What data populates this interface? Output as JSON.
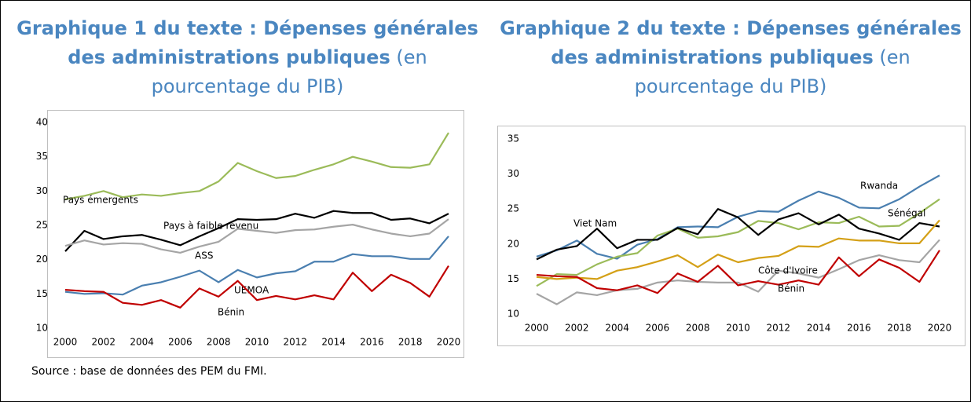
{
  "chart_data": [
    {
      "type": "line",
      "title": "Graphique 1 du texte : Dépenses générales des administrations publiques",
      "subtitle": "(en pourcentage du PIB)",
      "x": [
        2000,
        2001,
        2002,
        2003,
        2004,
        2005,
        2006,
        2007,
        2008,
        2009,
        2010,
        2011,
        2012,
        2013,
        2014,
        2015,
        2016,
        2017,
        2018,
        2019,
        2020
      ],
      "xlim": [
        2000,
        2020
      ],
      "xticks": [
        2000,
        2002,
        2004,
        2006,
        2008,
        2010,
        2012,
        2014,
        2016,
        2018,
        2020
      ],
      "ylim": [
        10,
        40
      ],
      "yticks": [
        10,
        15,
        20,
        25,
        30,
        35,
        40
      ],
      "grid": false,
      "series": [
        {
          "name": "Pays émergents",
          "color": "#9bbb59",
          "values": [
            28.8,
            29.3,
            30.0,
            29.1,
            29.5,
            29.3,
            29.7,
            30.0,
            31.4,
            34.1,
            32.9,
            31.9,
            32.2,
            33.1,
            33.9,
            35.0,
            34.3,
            33.5,
            33.4,
            33.9,
            38.5
          ]
        },
        {
          "name": "Pays à faible revenu",
          "color": "#000000",
          "values": [
            21.2,
            24.2,
            23.0,
            23.4,
            23.6,
            22.9,
            22.1,
            23.4,
            24.6,
            25.9,
            25.8,
            25.9,
            26.7,
            26.1,
            27.1,
            26.8,
            26.8,
            25.8,
            26.0,
            25.3,
            26.7
          ]
        },
        {
          "name": "ASS",
          "color": "#a5a5a5",
          "values": [
            22.0,
            22.8,
            22.2,
            22.4,
            22.3,
            21.5,
            21.0,
            21.9,
            22.6,
            24.5,
            24.2,
            23.9,
            24.3,
            24.4,
            24.8,
            25.1,
            24.4,
            23.8,
            23.4,
            23.8,
            25.9
          ]
        },
        {
          "name": "UEMOA",
          "color": "#4a7fb0",
          "values": [
            15.3,
            15.0,
            15.1,
            14.9,
            16.2,
            16.7,
            17.5,
            18.4,
            16.7,
            18.5,
            17.4,
            18.0,
            18.3,
            19.7,
            19.7,
            20.8,
            20.5,
            20.5,
            20.1,
            20.1,
            23.4
          ]
        },
        {
          "name": "Bénin",
          "color": "#c00000",
          "values": [
            15.6,
            15.4,
            15.3,
            13.7,
            13.4,
            14.1,
            13.0,
            15.8,
            14.6,
            16.9,
            14.1,
            14.7,
            14.2,
            14.8,
            14.2,
            18.1,
            15.4,
            17.8,
            16.6,
            14.6,
            19.1
          ]
        }
      ],
      "source": "Source : base de données des PEM du FMI."
    },
    {
      "type": "line",
      "title": "Graphique 2 du texte : Dépenses générales des administrations publiques",
      "subtitle": "(en pourcentage du PIB)",
      "x": [
        2000,
        2001,
        2002,
        2003,
        2004,
        2005,
        2006,
        2007,
        2008,
        2009,
        2010,
        2011,
        2012,
        2013,
        2014,
        2015,
        2016,
        2017,
        2018,
        2019,
        2020
      ],
      "xlim": [
        2000,
        2020
      ],
      "xticks": [
        2000,
        2002,
        2004,
        2006,
        2008,
        2010,
        2012,
        2014,
        2016,
        2018,
        2020
      ],
      "ylim": [
        10,
        35
      ],
      "yticks": [
        10,
        15,
        20,
        25,
        30,
        35
      ],
      "grid": false,
      "series": [
        {
          "name": "Rwanda",
          "color": "#4a7fb0",
          "values": [
            18.2,
            19.1,
            20.5,
            18.6,
            17.9,
            19.9,
            20.7,
            22.4,
            22.5,
            22.4,
            23.9,
            24.7,
            24.6,
            26.2,
            27.5,
            26.6,
            25.2,
            25.1,
            26.4,
            28.2,
            29.8
          ]
        },
        {
          "name": "Sénégal",
          "color": "#9bbb59",
          "values": [
            14.0,
            15.7,
            15.6,
            17.1,
            18.2,
            18.7,
            21.2,
            22.2,
            20.9,
            21.1,
            21.7,
            23.3,
            23.0,
            22.1,
            23.1,
            23.0,
            23.9,
            22.5,
            22.6,
            24.4,
            26.4
          ]
        },
        {
          "name": "Viet Nam",
          "color": "#000000",
          "values": [
            17.8,
            19.2,
            19.7,
            22.2,
            19.4,
            20.6,
            20.6,
            22.3,
            21.4,
            25.0,
            23.8,
            21.3,
            23.5,
            24.4,
            22.8,
            24.2,
            22.2,
            21.5,
            20.6,
            23.0,
            22.5
          ]
        },
        {
          "color": "#d4a017",
          "values": [
            15.3,
            15.0,
            15.2,
            15.0,
            16.2,
            16.7,
            17.5,
            18.4,
            16.7,
            18.5,
            17.4,
            18.0,
            18.3,
            19.7,
            19.6,
            20.8,
            20.5,
            20.5,
            20.1,
            20.1,
            23.4
          ]
        },
        {
          "name": "Côte d'Ivoire",
          "color": "#a5a5a5",
          "values": [
            12.9,
            11.4,
            13.1,
            12.7,
            13.4,
            13.6,
            14.5,
            14.8,
            14.6,
            14.5,
            14.5,
            13.2,
            16.2,
            15.8,
            15.2,
            16.4,
            17.7,
            18.4,
            17.7,
            17.4,
            20.6
          ]
        },
        {
          "name": "Bénin",
          "color": "#c00000",
          "values": [
            15.6,
            15.4,
            15.3,
            13.7,
            13.4,
            14.1,
            13.0,
            15.8,
            14.6,
            16.9,
            14.1,
            14.7,
            14.2,
            14.8,
            14.2,
            18.1,
            15.4,
            17.8,
            16.6,
            14.6,
            19.1
          ]
        }
      ]
    }
  ]
}
